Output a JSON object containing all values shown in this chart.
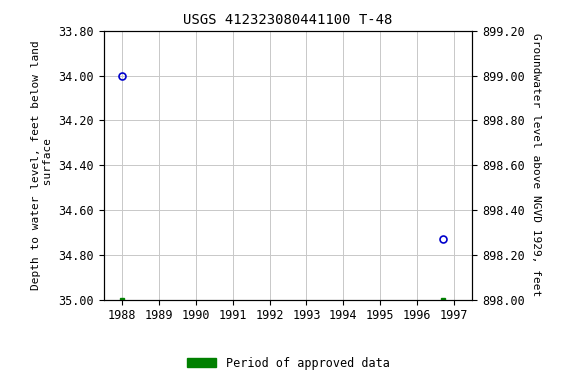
{
  "title": "USGS 412323080441100 T-48",
  "ylabel_left": "Depth to water level, feet below land\n surface",
  "ylabel_right": "Groundwater level above NGVD 1929, feet",
  "ylim_left_top": 33.8,
  "ylim_left_bottom": 35.0,
  "ylim_right_top": 899.2,
  "ylim_right_bottom": 898.0,
  "xlim": [
    1987.5,
    1997.5
  ],
  "yticks_left": [
    33.8,
    34.0,
    34.2,
    34.4,
    34.6,
    34.8,
    35.0
  ],
  "yticks_right": [
    899.2,
    899.0,
    898.8,
    898.6,
    898.4,
    898.2,
    898.0
  ],
  "xticks": [
    1988,
    1989,
    1990,
    1991,
    1992,
    1993,
    1994,
    1995,
    1996,
    1997
  ],
  "blue_points_x": [
    1988.0,
    1996.7
  ],
  "blue_points_y": [
    34.0,
    34.73
  ],
  "green_points_x": [
    1988.0,
    1996.7
  ],
  "green_points_y": [
    35.0,
    35.0
  ],
  "bg_color": "#ffffff",
  "grid_color": "#c8c8c8",
  "blue_marker_color": "#0000cc",
  "green_marker_color": "#008000",
  "legend_label": "Period of approved data",
  "title_fontsize": 10,
  "axis_label_fontsize": 8,
  "tick_fontsize": 8.5
}
